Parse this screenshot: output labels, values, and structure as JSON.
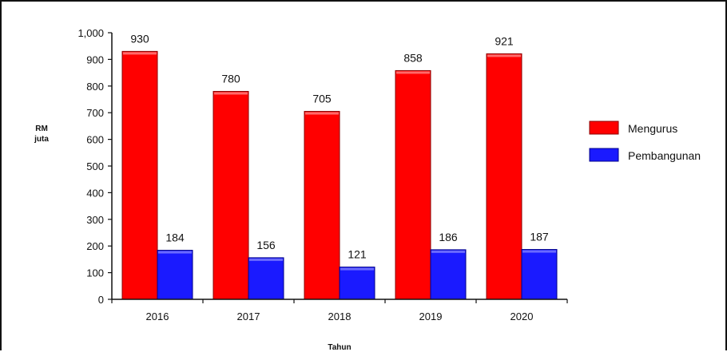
{
  "chart_data": {
    "type": "bar",
    "title": "",
    "xlabel": "Tahun",
    "ylabel": "RM juta",
    "categories": [
      "2016",
      "2017",
      "2018",
      "2019",
      "2020"
    ],
    "series": [
      {
        "name": "Mengurus",
        "values": [
          930,
          780,
          705,
          858,
          921
        ],
        "color": "#ff0000"
      },
      {
        "name": "Pembangunan",
        "values": [
          184,
          156,
          121,
          186,
          187
        ],
        "color": "#1a1aff"
      }
    ],
    "data_labels": {
      "Mengurus": [
        "930",
        "780",
        "705",
        "858",
        "921"
      ],
      "Pembangunan": [
        "184",
        "156",
        "121",
        "186",
        "187"
      ]
    },
    "ylim": [
      0,
      1000
    ],
    "y_ticks": [
      "0",
      "100",
      "200",
      "300",
      "400",
      "500",
      "600",
      "700",
      "800",
      "900",
      "1,000"
    ],
    "grid": false,
    "legend": {
      "position": "right",
      "entries": [
        "Mengurus",
        "Pembangunan"
      ]
    },
    "ylabel_lines": [
      "RM",
      "juta"
    ]
  }
}
